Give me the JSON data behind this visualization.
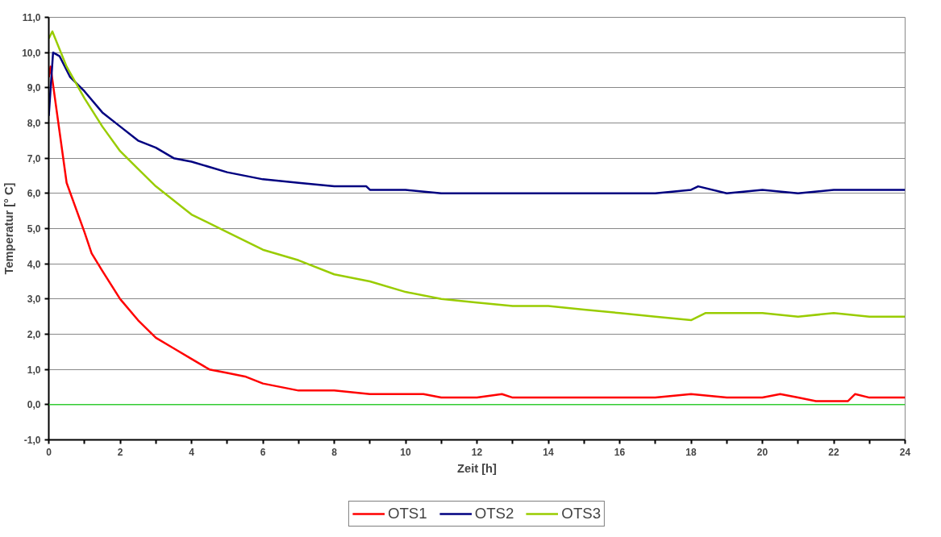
{
  "chart_data": {
    "type": "line",
    "xlabel": "Zeit [h]",
    "ylabel": "Temperatur [° C]",
    "xlim": [
      0,
      24
    ],
    "ylim": [
      -1,
      11
    ],
    "xticks": [
      0,
      {
        "value": 1,
        "label": null
      },
      2,
      {
        "value": 3,
        "label": null
      },
      4,
      {
        "value": 5,
        "label": null
      },
      6,
      {
        "value": 7,
        "label": null
      },
      8,
      {
        "value": 9,
        "label": null
      },
      10,
      {
        "value": 11,
        "label": null
      },
      12,
      {
        "value": 13,
        "label": null
      },
      14,
      {
        "value": 15,
        "label": null
      },
      16,
      {
        "value": 17,
        "label": null
      },
      18,
      {
        "value": 19,
        "label": null
      },
      20,
      {
        "value": 21,
        "label": null
      },
      22,
      {
        "value": 23,
        "label": null
      },
      24
    ],
    "yticks": [
      {
        "value": -1,
        "label": "-1,0"
      },
      {
        "value": 0,
        "label": "0,0"
      },
      {
        "value": 1,
        "label": "1,0"
      },
      {
        "value": 2,
        "label": "2,0"
      },
      {
        "value": 3,
        "label": "3,0"
      },
      {
        "value": 4,
        "label": "4,0"
      },
      {
        "value": 5,
        "label": "5,0"
      },
      {
        "value": 6,
        "label": "6,0"
      },
      {
        "value": 7,
        "label": "7,0"
      },
      {
        "value": 8,
        "label": "8,0"
      },
      {
        "value": 9,
        "label": "9,0"
      },
      {
        "value": 10,
        "label": "10,0"
      },
      {
        "value": 11,
        "label": "11,0"
      }
    ],
    "grid": "y",
    "legend": "bottom",
    "marker": "none",
    "line_style": "solid",
    "ref_lines": [
      {
        "axis": "y",
        "value": 0,
        "color": "#33cc33"
      }
    ],
    "series": [
      {
        "name": "OTS1",
        "color": "#ff0000",
        "x": [
          0,
          0.05,
          0.5,
          1,
          1.2,
          1.5,
          2,
          2.5,
          3,
          3.5,
          4,
          4.5,
          5,
          5.5,
          6,
          7,
          8,
          9,
          10,
          10.5,
          11,
          12,
          12.7,
          13,
          14,
          15,
          16,
          17,
          18,
          19,
          20,
          20.5,
          21,
          21.5,
          22,
          22.4,
          22.6,
          23,
          24
        ],
        "values": [
          9.3,
          9.6,
          6.3,
          4.9,
          4.3,
          3.8,
          3.0,
          2.4,
          1.9,
          1.6,
          1.3,
          1.0,
          0.9,
          0.8,
          0.6,
          0.4,
          0.4,
          0.3,
          0.3,
          0.3,
          0.2,
          0.2,
          0.3,
          0.2,
          0.2,
          0.2,
          0.2,
          0.2,
          0.3,
          0.2,
          0.2,
          0.3,
          0.2,
          0.1,
          0.1,
          0.1,
          0.3,
          0.2,
          0.2
        ]
      },
      {
        "name": "OTS2",
        "color": "#000080",
        "x": [
          0,
          0.12,
          0.3,
          0.6,
          1,
          1.5,
          2,
          2.5,
          3,
          3.5,
          4,
          5,
          6,
          7,
          8,
          8.9,
          9,
          10,
          11,
          12,
          13,
          14,
          15,
          16,
          17,
          18,
          18.2,
          19,
          20,
          21,
          22,
          23,
          24
        ],
        "values": [
          8.2,
          10.0,
          9.9,
          9.3,
          8.9,
          8.3,
          7.9,
          7.5,
          7.3,
          7.0,
          6.9,
          6.6,
          6.4,
          6.3,
          6.2,
          6.2,
          6.1,
          6.1,
          6.0,
          6.0,
          6.0,
          6.0,
          6.0,
          6.0,
          6.0,
          6.1,
          6.2,
          6.0,
          6.1,
          6.0,
          6.1,
          6.1,
          6.1
        ]
      },
      {
        "name": "OTS3",
        "color": "#99cc00",
        "x": [
          0,
          0.1,
          0.5,
          1,
          1.5,
          2,
          2.5,
          3,
          3.5,
          4,
          5,
          6,
          7,
          8,
          9,
          10,
          11,
          12,
          13,
          14,
          15,
          16,
          17,
          18,
          18.4,
          19,
          20,
          21,
          22,
          23,
          24
        ],
        "values": [
          10.4,
          10.6,
          9.6,
          8.7,
          7.9,
          7.2,
          6.7,
          6.2,
          5.8,
          5.4,
          4.9,
          4.4,
          4.1,
          3.7,
          3.5,
          3.2,
          3.0,
          2.9,
          2.8,
          2.8,
          2.7,
          2.6,
          2.5,
          2.4,
          2.6,
          2.6,
          2.6,
          2.5,
          2.6,
          2.5,
          2.5
        ]
      }
    ]
  }
}
